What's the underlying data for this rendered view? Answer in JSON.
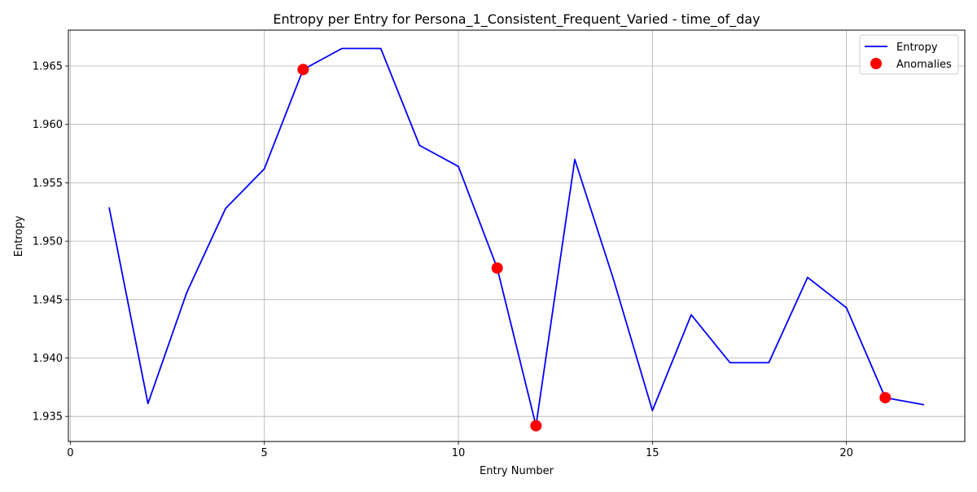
{
  "chart_data": {
    "type": "line",
    "title": "Entropy per Entry for Persona_1_Consistent_Frequent_Varied - time_of_day",
    "xlabel": "Entry Number",
    "ylabel": "Entropy",
    "xlim": [
      -0.05,
      23.05
    ],
    "ylim": [
      1.93285,
      1.96807
    ],
    "xticks": [
      0,
      5,
      10,
      15,
      20
    ],
    "yticks": [
      1.935,
      1.94,
      1.945,
      1.95,
      1.955,
      1.96,
      1.965
    ],
    "grid": true,
    "legend_position": "top-right",
    "series": [
      {
        "name": "Entropy",
        "kind": "line",
        "color": "#0000ff",
        "x": [
          1,
          2,
          3,
          4,
          5,
          6,
          7,
          8,
          9,
          10,
          11,
          12,
          13,
          14,
          15,
          16,
          17,
          18,
          19,
          20,
          21,
          22
        ],
        "y": [
          1.9529,
          1.9361,
          1.9456,
          1.9528,
          1.9562,
          1.9647,
          1.9665,
          1.9665,
          1.9582,
          1.9564,
          1.9477,
          1.9342,
          1.957,
          1.9467,
          1.9355,
          1.9437,
          1.9396,
          1.9396,
          1.9469,
          1.9443,
          1.9366,
          1.936
        ]
      },
      {
        "name": "Anomalies",
        "kind": "scatter",
        "color": "#ff0000",
        "x": [
          6,
          11,
          12,
          21
        ],
        "y": [
          1.9647,
          1.9477,
          1.9342,
          1.9366
        ]
      }
    ]
  }
}
